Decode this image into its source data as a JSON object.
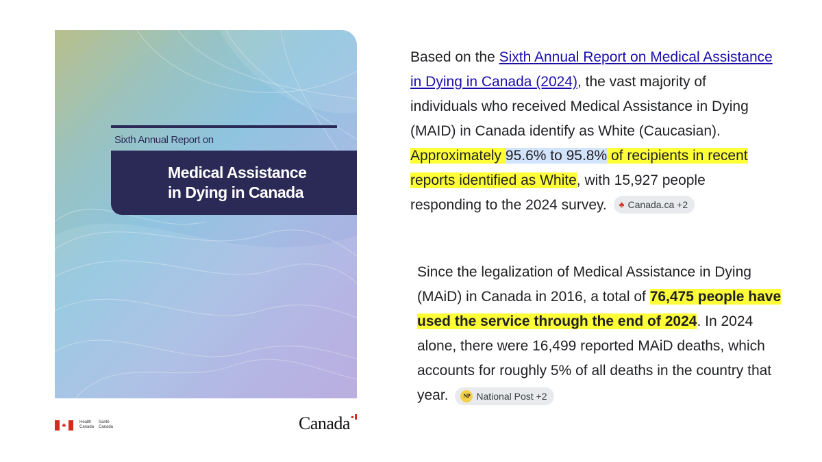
{
  "cover": {
    "kicker": "Sixth Annual Report on",
    "title_line1": "Medical Assistance",
    "title_line2": "in Dying in Canada"
  },
  "footer": {
    "health_en_1": "Health",
    "health_en_2": "Canada",
    "health_fr_1": "Santé",
    "health_fr_2": "Canada",
    "wordmark": "Canada"
  },
  "paragraph1": {
    "t1": "Based on the ",
    "link": "Sixth Annual Report on Medical Assistance in Dying in Canada (2024)",
    "t2": ", the vast majority of individuals who received Medical Assistance in Dying (MAID) in Canada identify as White (Caucasian). ",
    "hl1": "Approximately ",
    "hl_blue": " 95.6% to 95.8%",
    "hl2": " of recipients in recent reports identified as White",
    "t3": ", with 15,927 people responding to the 2024 survey.",
    "chip_label": "Canada.ca +2",
    "chip_icon": "maple-leaf-icon"
  },
  "paragraph2": {
    "t1": "Since the legalization of Medical Assistance in Dying (MAiD) in Canada in 2016, a total of ",
    "hl_bold": "76,475 people have used the service through the end of 2024",
    "t2": ". In 2024 alone, there were 16,499 reported MAiD deaths, which accounts for roughly 5% of all deaths in the country that year.",
    "chip_icon_text": "NP",
    "chip_label": "National Post +2",
    "chip_icon": "national-post-icon"
  },
  "colors": {
    "highlight": "#ffff38",
    "highlight_blue": "#d2e3fc",
    "link": "#1a0dab",
    "cover_navy": "#2b2a57"
  }
}
